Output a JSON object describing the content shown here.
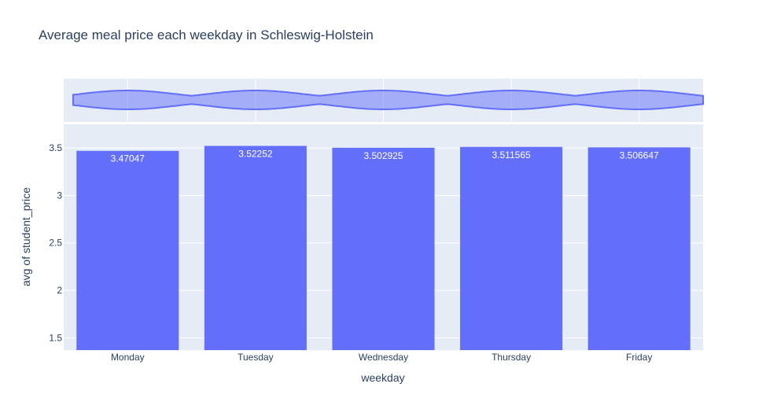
{
  "chart_data": {
    "type": "bar",
    "title": "Average meal price each weekday in Schleswig-Holstein",
    "xlabel": "weekday",
    "ylabel": "avg of student_price",
    "categories": [
      "Monday",
      "Tuesday",
      "Wednesday",
      "Thursday",
      "Friday"
    ],
    "values": [
      3.47047,
      3.52252,
      3.502925,
      3.511565,
      3.506647
    ],
    "data_labels": [
      "3.47047",
      "3.52252",
      "3.502925",
      "3.511565",
      "3.506647"
    ],
    "ylim": [
      1.37,
      3.75
    ],
    "yticks": [
      1.5,
      2,
      2.5,
      3,
      3.5
    ],
    "ytick_labels": [
      "1.5",
      "2",
      "2.5",
      "3",
      "3.5"
    ],
    "grid": true,
    "bar_color": "#636efa",
    "plot_background": "#e5ecf6",
    "text_color": "#2a3f5f",
    "marginal_plot": {
      "type": "violin",
      "orientation": "horizontal",
      "color": "#636efa"
    }
  }
}
